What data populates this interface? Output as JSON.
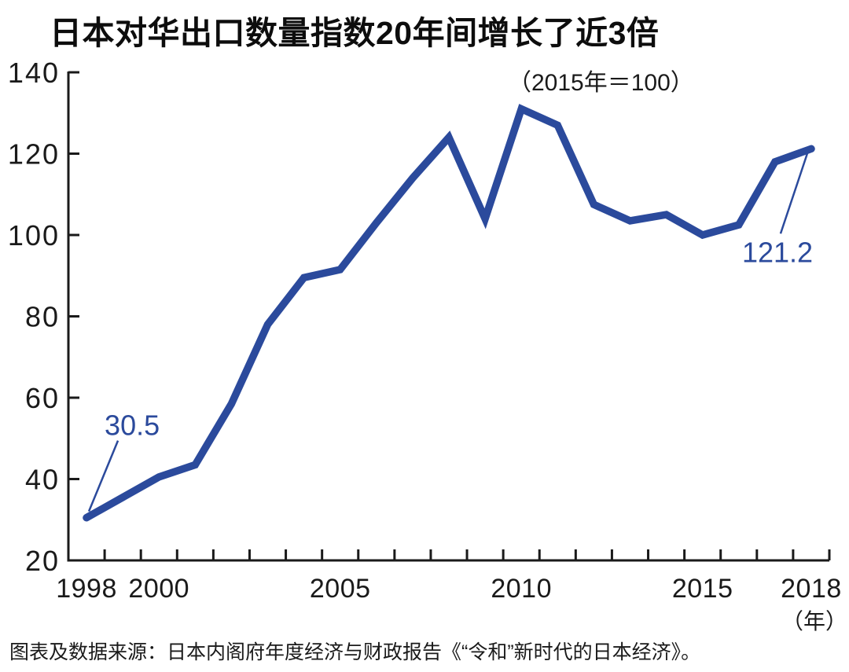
{
  "page": {
    "title": "日本对华出口数量指数20年间增长了近3倍",
    "subtitle": "（2015年＝100）",
    "x_unit_label": "（年）",
    "source": "图表及数据来源：日本内阁府年度经济与财政报告《“令和”新时代的日本经济》。"
  },
  "colors": {
    "line": "#2b4a9c",
    "annotation": "#2b4a9c",
    "axis": "#1a1a1a",
    "text": "#1a1a1a",
    "background": "#ffffff"
  },
  "chart_data": {
    "type": "line",
    "title": "日本对华出口数量指数20年间增长了近3倍",
    "subtitle": "（2015年＝100）",
    "x": [
      1998,
      1999,
      2000,
      2001,
      2002,
      2003,
      2004,
      2005,
      2006,
      2007,
      2008,
      2009,
      2010,
      2011,
      2012,
      2013,
      2014,
      2015,
      2016,
      2017,
      2018
    ],
    "series": [
      {
        "name": "日本对华出口数量指数（2015年＝100）",
        "values": [
          30.5,
          35.5,
          40.5,
          43.5,
          58.5,
          78,
          89.5,
          91.5,
          103,
          114,
          124,
          104,
          131,
          127,
          107.5,
          103.5,
          105,
          100,
          102.5,
          118,
          121.2
        ]
      }
    ],
    "xlabel": "年",
    "ylabel": "",
    "ylim": [
      20,
      140
    ],
    "y_ticks": [
      20,
      40,
      60,
      80,
      100,
      120,
      140
    ],
    "x_tick_labels": [
      "1998",
      "2000",
      "2005",
      "2010",
      "2015",
      "2018"
    ],
    "x_tick_label_indices": [
      0,
      2,
      7,
      12,
      17,
      20
    ],
    "grid": false,
    "legend_position": "none",
    "annotations": [
      {
        "text": "30.5",
        "year_index": 0
      },
      {
        "text": "121.2",
        "year_index": 20
      }
    ]
  }
}
